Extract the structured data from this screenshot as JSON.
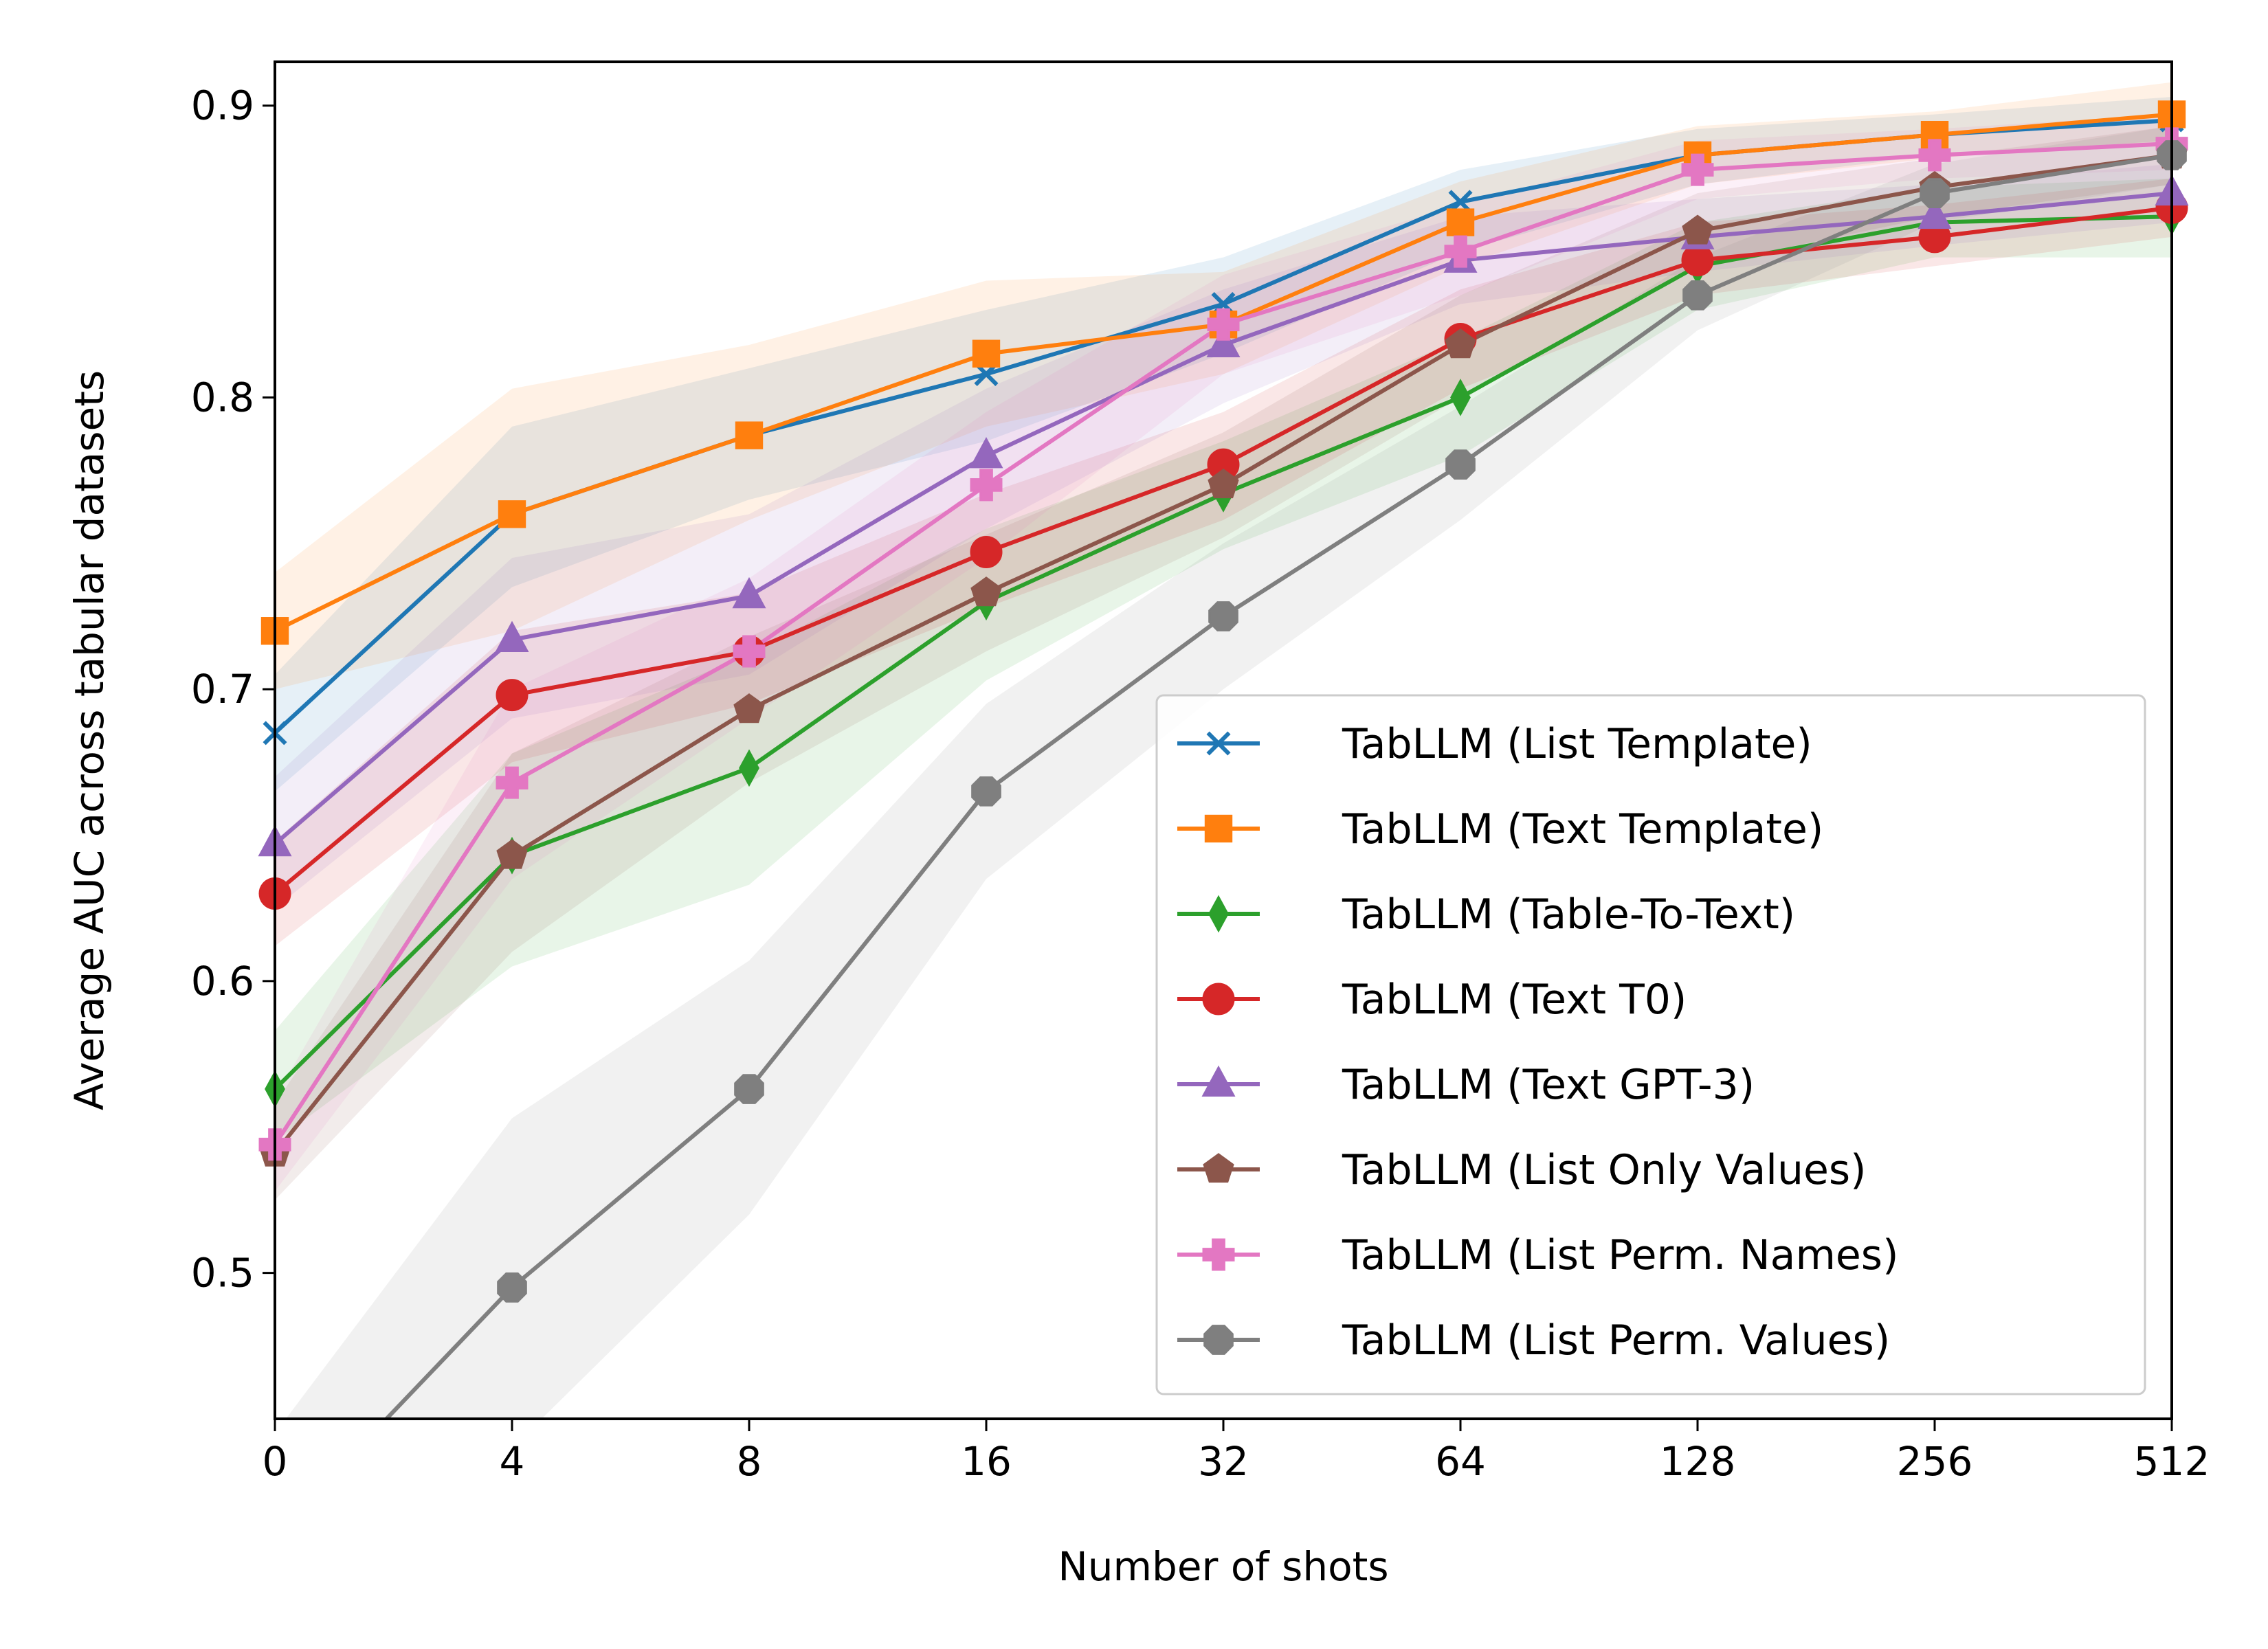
{
  "chart_data": {
    "type": "line",
    "title": "",
    "xlabel": "Number of shots",
    "ylabel": "Average AUC across tabular datasets",
    "x": [
      "0",
      "4",
      "8",
      "16",
      "32",
      "64",
      "128",
      "256",
      "512"
    ],
    "ylim": [
      0.45,
      0.915
    ],
    "yticks": [
      "0.5",
      "0.6",
      "0.7",
      "0.8",
      "0.9"
    ],
    "grid": false,
    "legend_position": "lower-right",
    "series": [
      {
        "name": "TabLLM (List Template)",
        "color": "#1f77b4",
        "marker": "x",
        "values": [
          0.685,
          0.76,
          0.787,
          0.808,
          0.832,
          0.867,
          0.883,
          0.89,
          0.895
        ],
        "band_lower": [
          0.665,
          0.735,
          0.765,
          0.785,
          0.815,
          0.85,
          0.873,
          0.883,
          0.888
        ],
        "band_upper": [
          0.705,
          0.79,
          0.81,
          0.83,
          0.848,
          0.878,
          0.892,
          0.897,
          0.903
        ]
      },
      {
        "name": "TabLLM (Text Template)",
        "color": "#ff7f0e",
        "marker": "square",
        "values": [
          0.72,
          0.76,
          0.787,
          0.815,
          0.825,
          0.86,
          0.883,
          0.89,
          0.897
        ],
        "band_lower": [
          0.7,
          0.72,
          0.758,
          0.79,
          0.808,
          0.845,
          0.873,
          0.882,
          0.888
        ],
        "band_upper": [
          0.74,
          0.803,
          0.818,
          0.84,
          0.843,
          0.874,
          0.893,
          0.898,
          0.908
        ]
      },
      {
        "name": "TabLLM (Table-To-Text)",
        "color": "#2ca02c",
        "marker": "thin-diamond",
        "values": [
          0.563,
          0.643,
          0.673,
          0.73,
          0.767,
          0.8,
          0.845,
          0.86,
          0.862
        ],
        "band_lower": [
          0.545,
          0.605,
          0.633,
          0.703,
          0.748,
          0.78,
          0.83,
          0.848,
          0.848
        ],
        "band_upper": [
          0.583,
          0.678,
          0.712,
          0.755,
          0.785,
          0.82,
          0.86,
          0.872,
          0.875
        ]
      },
      {
        "name": "TabLLM (Text T0)",
        "color": "#d62728",
        "marker": "circle",
        "values": [
          0.63,
          0.698,
          0.713,
          0.747,
          0.777,
          0.82,
          0.847,
          0.855,
          0.865
        ],
        "band_lower": [
          0.612,
          0.675,
          0.695,
          0.728,
          0.758,
          0.803,
          0.835,
          0.845,
          0.855
        ],
        "band_upper": [
          0.648,
          0.72,
          0.733,
          0.767,
          0.795,
          0.837,
          0.86,
          0.866,
          0.875
        ]
      },
      {
        "name": "TabLLM (Text GPT-3)",
        "color": "#9467bd",
        "marker": "triangle",
        "values": [
          0.647,
          0.717,
          0.732,
          0.78,
          0.818,
          0.847,
          0.855,
          0.862,
          0.87
        ],
        "band_lower": [
          0.625,
          0.69,
          0.705,
          0.755,
          0.798,
          0.832,
          0.843,
          0.852,
          0.86
        ],
        "band_upper": [
          0.67,
          0.745,
          0.76,
          0.803,
          0.837,
          0.862,
          0.868,
          0.873,
          0.88
        ]
      },
      {
        "name": "TabLLM (List Only Values)",
        "color": "#8c564b",
        "marker": "pentagon",
        "values": [
          0.541,
          0.643,
          0.693,
          0.733,
          0.77,
          0.818,
          0.857,
          0.872,
          0.883
        ],
        "band_lower": [
          0.525,
          0.61,
          0.668,
          0.713,
          0.752,
          0.8,
          0.845,
          0.862,
          0.873
        ],
        "band_upper": [
          0.558,
          0.678,
          0.718,
          0.753,
          0.788,
          0.835,
          0.87,
          0.882,
          0.893
        ]
      },
      {
        "name": "TabLLM (List Perm. Names)",
        "color": "#e377c2",
        "marker": "plus",
        "values": [
          0.544,
          0.668,
          0.713,
          0.77,
          0.825,
          0.85,
          0.878,
          0.883,
          0.887
        ],
        "band_lower": [
          0.528,
          0.635,
          0.69,
          0.745,
          0.808,
          0.835,
          0.868,
          0.875,
          0.878
        ],
        "band_upper": [
          0.56,
          0.7,
          0.738,
          0.795,
          0.842,
          0.866,
          0.888,
          0.892,
          0.897
        ]
      },
      {
        "name": "TabLLM (List Perm. Values)",
        "color": "#7f7f7f",
        "marker": "octagon",
        "values": [
          0.41,
          0.495,
          0.563,
          0.665,
          0.725,
          0.777,
          0.835,
          0.87,
          0.883
        ],
        "band_lower": [
          0.38,
          0.44,
          0.52,
          0.635,
          0.7,
          0.758,
          0.823,
          0.86,
          0.873
        ],
        "band_upper": [
          0.445,
          0.553,
          0.607,
          0.695,
          0.75,
          0.797,
          0.848,
          0.88,
          0.893
        ]
      }
    ]
  }
}
